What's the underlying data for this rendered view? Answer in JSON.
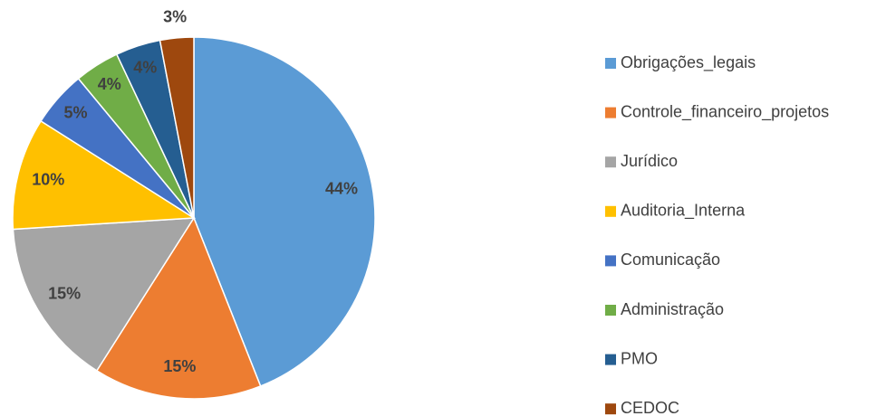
{
  "chart_data": {
    "type": "pie",
    "categories": [
      "Obrigações_legais",
      "Controle_financeiro_projetos",
      "Jurídico",
      "Auditoria_Interna",
      "Comunicação",
      "Administração",
      "PMO",
      "CEDOC"
    ],
    "values": [
      44,
      15,
      15,
      10,
      5,
      4,
      4,
      3
    ],
    "value_labels": [
      "44%",
      "15%",
      "15%",
      "10%",
      "5%",
      "4%",
      "4%",
      "3%"
    ],
    "colors": [
      "#5b9bd5",
      "#ed7d31",
      "#a5a5a5",
      "#ffc000",
      "#4472c4",
      "#70ad47",
      "#255e91",
      "#9e480e"
    ],
    "legend": "right"
  }
}
